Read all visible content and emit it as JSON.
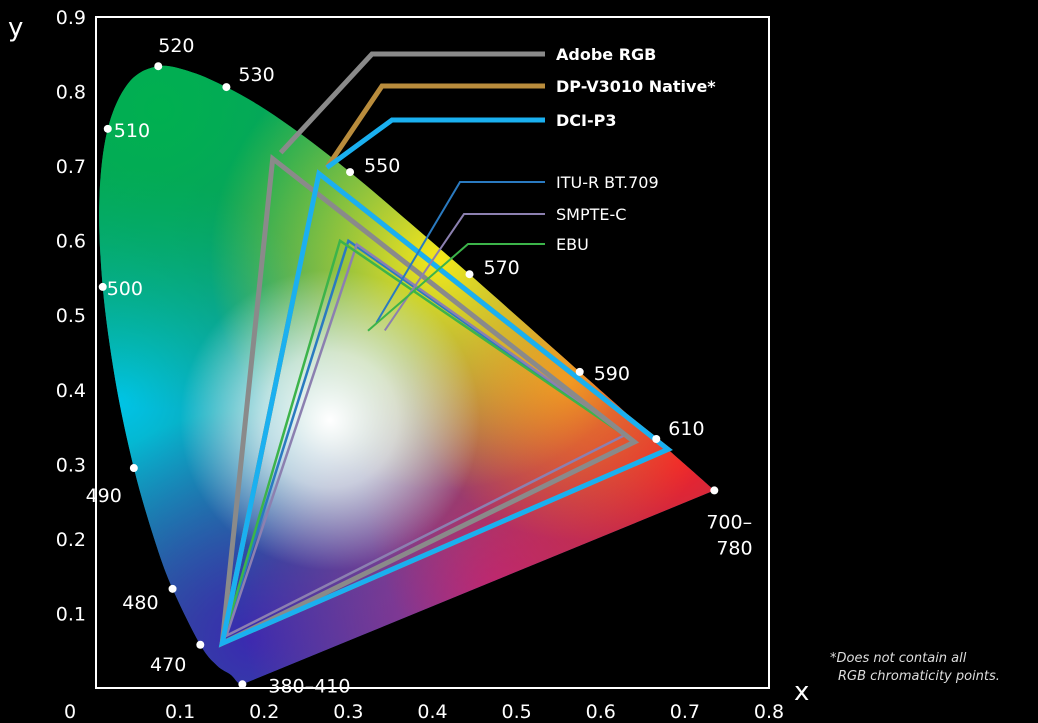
{
  "chart_data": {
    "type": "scatter",
    "xlabel": "x",
    "ylabel": "y",
    "xlim": [
      0,
      0.8
    ],
    "ylim": [
      0,
      0.9
    ],
    "origin_label": "0",
    "x_ticks": [
      "0.1",
      "0.2",
      "0.3",
      "0.4",
      "0.5",
      "0.6",
      "0.7",
      "0.8"
    ],
    "y_ticks": [
      "0.1",
      "0.2",
      "0.3",
      "0.4",
      "0.5",
      "0.6",
      "0.7",
      "0.8",
      "0.9"
    ],
    "spectral_locus": [
      [
        0.174,
        0.005
      ],
      [
        0.172,
        0.005
      ],
      [
        0.168,
        0.008
      ],
      [
        0.16,
        0.018
      ],
      [
        0.144,
        0.03
      ],
      [
        0.124,
        0.058
      ],
      [
        0.091,
        0.133
      ],
      [
        0.069,
        0.201
      ],
      [
        0.045,
        0.295
      ],
      [
        0.023,
        0.413
      ],
      [
        0.008,
        0.538
      ],
      [
        0.004,
        0.655
      ],
      [
        0.014,
        0.75
      ],
      [
        0.039,
        0.812
      ],
      [
        0.074,
        0.834
      ],
      [
        0.114,
        0.826
      ],
      [
        0.155,
        0.806
      ],
      [
        0.193,
        0.782
      ],
      [
        0.23,
        0.754
      ],
      [
        0.266,
        0.724
      ],
      [
        0.302,
        0.692
      ],
      [
        0.337,
        0.659
      ],
      [
        0.373,
        0.624
      ],
      [
        0.409,
        0.589
      ],
      [
        0.444,
        0.555
      ],
      [
        0.479,
        0.52
      ],
      [
        0.512,
        0.487
      ],
      [
        0.545,
        0.454
      ],
      [
        0.575,
        0.424
      ],
      [
        0.603,
        0.396
      ],
      [
        0.627,
        0.372
      ],
      [
        0.648,
        0.351
      ],
      [
        0.666,
        0.334
      ],
      [
        0.681,
        0.319
      ],
      [
        0.694,
        0.306
      ],
      [
        0.706,
        0.294
      ],
      [
        0.715,
        0.285
      ],
      [
        0.724,
        0.276
      ],
      [
        0.735,
        0.265
      ]
    ],
    "wavelength_points": [
      {
        "label": "520",
        "x": 0.074,
        "y": 0.834
      },
      {
        "label": "530",
        "x": 0.155,
        "y": 0.806
      },
      {
        "label": "510",
        "x": 0.014,
        "y": 0.75
      },
      {
        "label": "550",
        "x": 0.302,
        "y": 0.692
      },
      {
        "label": "570",
        "x": 0.444,
        "y": 0.555
      },
      {
        "label": "500",
        "x": 0.008,
        "y": 0.538
      },
      {
        "label": "590",
        "x": 0.575,
        "y": 0.424
      },
      {
        "label": "610",
        "x": 0.666,
        "y": 0.334
      },
      {
        "label": "490",
        "x": 0.045,
        "y": 0.295
      },
      {
        "label": "700–\n780",
        "x": 0.735,
        "y": 0.265
      },
      {
        "label": "480",
        "x": 0.091,
        "y": 0.133
      },
      {
        "label": "470",
        "x": 0.124,
        "y": 0.058
      },
      {
        "label": "380–410",
        "x": 0.174,
        "y": 0.005
      }
    ],
    "series": [
      {
        "name": "Adobe RGB",
        "color": "#8a8a8a",
        "bold": true,
        "width": 5,
        "points": [
          [
            0.64,
            0.33
          ],
          [
            0.21,
            0.71
          ],
          [
            0.15,
            0.06
          ]
        ]
      },
      {
        "name": "DP-V3010 Native*",
        "color": "#b98c3c",
        "bold": true,
        "width": 5,
        "points": [
          [
            0.68,
            0.32
          ],
          [
            0.265,
            0.69
          ],
          [
            0.15,
            0.06
          ]
        ]
      },
      {
        "name": "DCI-P3",
        "color": "#1ab0f0",
        "bold": true,
        "width": 5,
        "points": [
          [
            0.68,
            0.32
          ],
          [
            0.265,
            0.69
          ],
          [
            0.15,
            0.06
          ]
        ]
      },
      {
        "name": "ITU-R BT.709",
        "color": "#2a7ac0",
        "bold": false,
        "width": 2.5,
        "points": [
          [
            0.64,
            0.33
          ],
          [
            0.3,
            0.6
          ],
          [
            0.15,
            0.06
          ]
        ]
      },
      {
        "name": "SMPTE-C",
        "color": "#8c80b0",
        "bold": false,
        "width": 2.5,
        "points": [
          [
            0.63,
            0.34
          ],
          [
            0.31,
            0.595
          ],
          [
            0.155,
            0.07
          ]
        ]
      },
      {
        "name": "EBU",
        "color": "#3cb44a",
        "bold": false,
        "width": 2.5,
        "points": [
          [
            0.64,
            0.33
          ],
          [
            0.29,
            0.6
          ],
          [
            0.15,
            0.06
          ]
        ]
      }
    ]
  },
  "footnote": {
    "line1": "*Does not contain all",
    "line2": "RGB chromaticity points."
  }
}
